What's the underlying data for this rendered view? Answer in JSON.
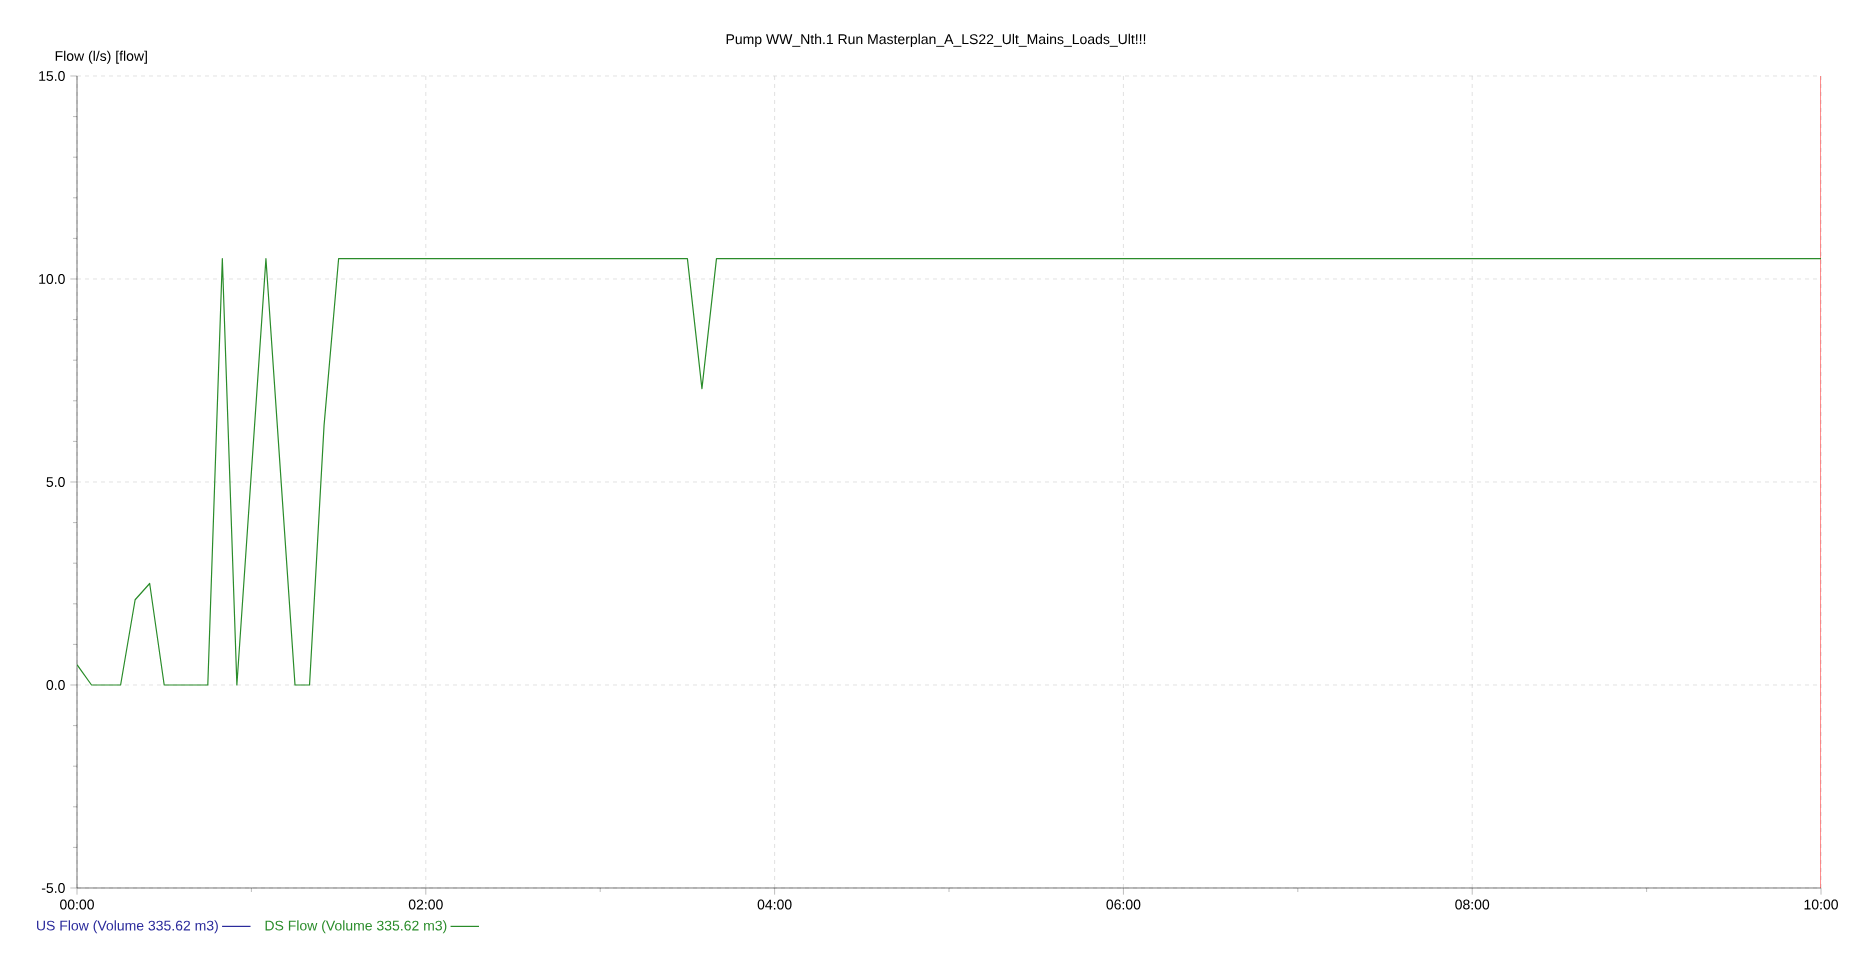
{
  "chart_data": {
    "type": "line",
    "title": "Pump WW_Nth.1 Run Masterplan_A_LS22_Ult_Mains_Loads_Ult!!!",
    "ylabel": "Flow (l/s) [flow]",
    "x": [
      0,
      0.0833,
      0.25,
      0.3333,
      0.4167,
      0.5,
      0.75,
      0.8333,
      0.9167,
      1.0833,
      1.25,
      1.3333,
      1.4167,
      1.5,
      3.5,
      3.5833,
      3.6667,
      10
    ],
    "series": [
      {
        "name": "US Flow (Volume 335.62 m3)",
        "color": "#2b2b9c",
        "values": [
          null,
          null,
          null,
          null,
          null,
          null,
          null,
          null,
          null,
          null,
          null,
          null,
          null,
          null,
          null,
          null,
          null,
          null
        ]
      },
      {
        "name": "DS Flow (Volume 335.62 m3)",
        "color": "#2a8c2a",
        "values": [
          0.5,
          0,
          0,
          2.1,
          2.5,
          0,
          0,
          10.5,
          0,
          10.5,
          0,
          0,
          6.4,
          10.5,
          10.5,
          7.3,
          10.5,
          10.5
        ]
      }
    ],
    "xlim": [
      0,
      10
    ],
    "ylim": [
      -5,
      15
    ],
    "xticks": [
      {
        "value": 0,
        "label": "00:00"
      },
      {
        "value": 2,
        "label": "02:00"
      },
      {
        "value": 4,
        "label": "04:00"
      },
      {
        "value": 6,
        "label": "06:00"
      },
      {
        "value": 8,
        "label": "08:00"
      },
      {
        "value": 10,
        "label": "10:00"
      }
    ],
    "yticks": [
      {
        "value": -5,
        "label": "-5.0"
      },
      {
        "value": 0,
        "label": "0.0"
      },
      {
        "value": 5,
        "label": "5.0"
      },
      {
        "value": 10,
        "label": "10.0"
      },
      {
        "value": 15,
        "label": "15.0"
      }
    ],
    "ref_lines": [
      {
        "axis": "x",
        "value": 10,
        "color": "#ff0000"
      }
    ],
    "grid": true,
    "legend": "bottom left",
    "marker": "none",
    "line_style": "solid"
  }
}
